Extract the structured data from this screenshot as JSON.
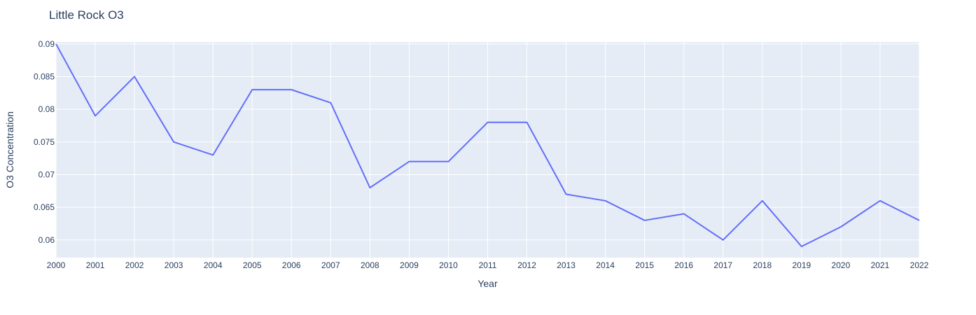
{
  "chart_data": {
    "type": "line",
    "title": "Little Rock O3",
    "xlabel": "Year",
    "ylabel": "O3 Concentration",
    "x": [
      2000,
      2001,
      2002,
      2003,
      2004,
      2005,
      2006,
      2007,
      2008,
      2009,
      2010,
      2011,
      2012,
      2013,
      2014,
      2015,
      2016,
      2017,
      2018,
      2019,
      2020,
      2021,
      2022
    ],
    "series": [
      {
        "values": [
          0.09,
          0.079,
          0.085,
          0.075,
          0.073,
          0.083,
          0.083,
          0.081,
          0.068,
          0.072,
          0.072,
          0.078,
          0.078,
          0.067,
          0.066,
          0.063,
          0.064,
          0.06,
          0.066,
          0.059,
          0.062,
          0.066,
          0.063
        ]
      }
    ],
    "xlim": [
      2000,
      2022
    ],
    "ylim": [
      0.0573,
      0.0903
    ],
    "x_ticks": [
      "2000",
      "2001",
      "2002",
      "2003",
      "2004",
      "2005",
      "2006",
      "2007",
      "2008",
      "2009",
      "2010",
      "2011",
      "2012",
      "2013",
      "2014",
      "2015",
      "2016",
      "2017",
      "2018",
      "2019",
      "2020",
      "2021",
      "2022"
    ],
    "y_ticks": [
      "0.06",
      "0.065",
      "0.07",
      "0.075",
      "0.08",
      "0.085",
      "0.09"
    ],
    "grid": true,
    "colors": {
      "line": "#636efa",
      "plot_bg": "#e5ecf6",
      "grid": "#ffffff",
      "text": "#2a3f5f"
    }
  }
}
